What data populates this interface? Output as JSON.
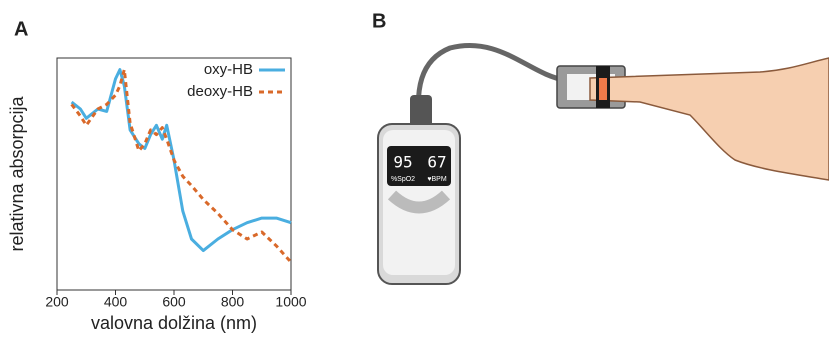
{
  "panel_labels": [
    "A",
    "B"
  ],
  "device": {
    "spo2": "95",
    "pulse": "67",
    "spo2_label": "%SpO2",
    "pulse_label": "♥BPM"
  },
  "chart_data": {
    "type": "line",
    "x_label": "valovna dolžina (nm)",
    "y_label": "relativna absorpcija",
    "x": [
      250,
      280,
      300,
      340,
      370,
      400,
      415,
      430,
      450,
      480,
      500,
      520,
      540,
      560,
      575,
      600,
      630,
      660,
      700,
      750,
      800,
      850,
      900,
      950,
      1000
    ],
    "series": [
      {
        "name": "oxy-HB",
        "color": "#4aaee0",
        "dash": false,
        "values": [
          0.81,
          0.78,
          0.74,
          0.78,
          0.77,
          0.91,
          0.95,
          0.88,
          0.69,
          0.63,
          0.61,
          0.67,
          0.71,
          0.65,
          0.71,
          0.56,
          0.34,
          0.22,
          0.17,
          0.22,
          0.26,
          0.29,
          0.31,
          0.31,
          0.29
        ]
      },
      {
        "name": "deoxy-HB",
        "color": "#d9692a",
        "dash": true,
        "values": [
          0.8,
          0.75,
          0.71,
          0.78,
          0.8,
          0.84,
          0.88,
          0.95,
          0.72,
          0.6,
          0.63,
          0.69,
          0.67,
          0.7,
          0.65,
          0.56,
          0.49,
          0.45,
          0.39,
          0.33,
          0.26,
          0.22,
          0.25,
          0.19,
          0.12
        ]
      }
    ],
    "xlim": [
      200,
      1000
    ],
    "ylim": [
      0,
      1
    ],
    "xticks": [
      200,
      400,
      600,
      800,
      1000
    ],
    "legend": "upper right"
  }
}
